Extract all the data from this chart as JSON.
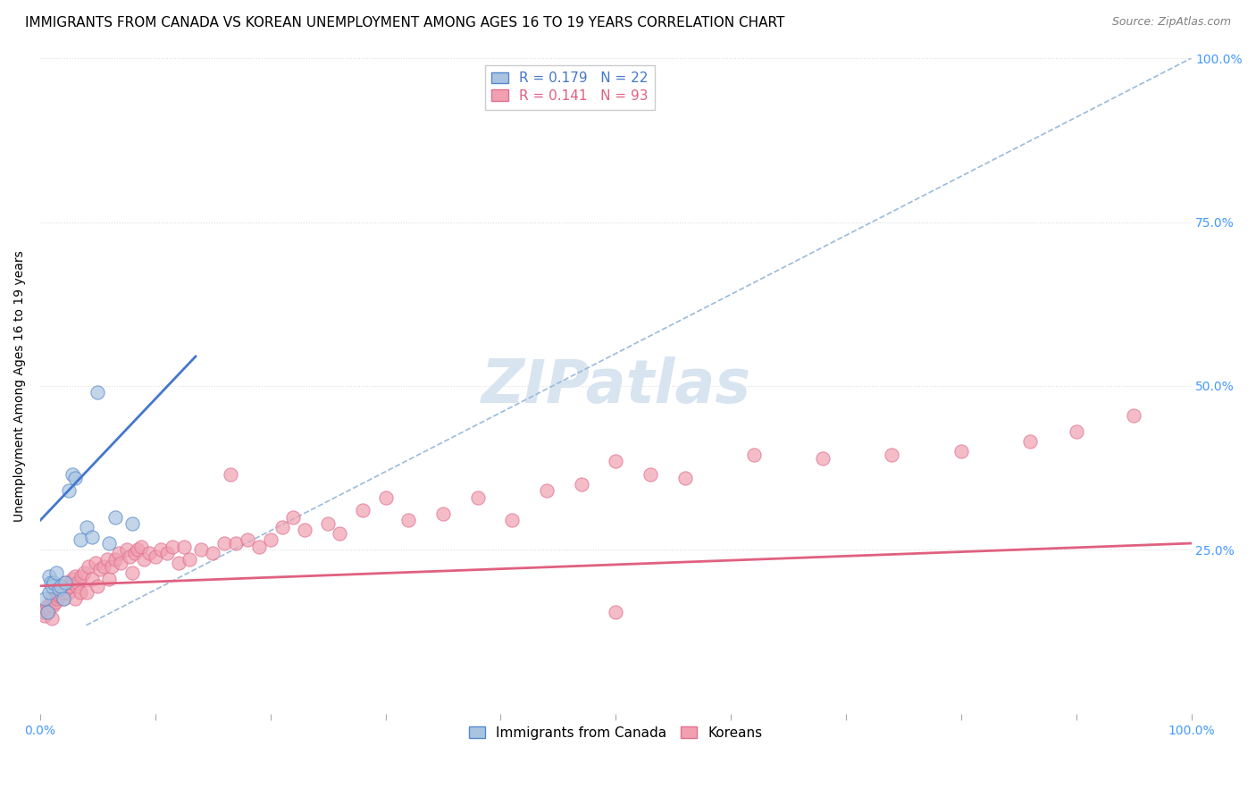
{
  "title": "IMMIGRANTS FROM CANADA VS KOREAN UNEMPLOYMENT AMONG AGES 16 TO 19 YEARS CORRELATION CHART",
  "source": "Source: ZipAtlas.com",
  "ylabel": "Unemployment Among Ages 16 to 19 years",
  "xlim": [
    0,
    1
  ],
  "ylim": [
    0,
    1
  ],
  "legend_r1": "R = 0.179",
  "legend_n1": "N = 22",
  "legend_r2": "R = 0.141",
  "legend_n2": "N = 93",
  "blue_fill": "#A8C4E0",
  "blue_edge": "#5588CC",
  "pink_fill": "#F0A0B0",
  "pink_edge": "#E07090",
  "blue_line_color": "#4477CC",
  "pink_line_color": "#E06080",
  "dashed_line_color": "#99BBDD",
  "watermark_text": "ZIPatlas",
  "watermark_color": "#D8E4F0",
  "background_color": "#FFFFFF",
  "grid_color": "#DDDDDD",
  "blue_points_x": [
    0.004,
    0.006,
    0.008,
    0.008,
    0.009,
    0.01,
    0.012,
    0.014,
    0.016,
    0.018,
    0.02,
    0.022,
    0.025,
    0.028,
    0.03,
    0.035,
    0.04,
    0.045,
    0.05,
    0.06,
    0.065,
    0.08
  ],
  "blue_points_y": [
    0.175,
    0.155,
    0.185,
    0.21,
    0.2,
    0.195,
    0.2,
    0.215,
    0.19,
    0.195,
    0.175,
    0.2,
    0.34,
    0.365,
    0.36,
    0.265,
    0.285,
    0.27,
    0.49,
    0.26,
    0.3,
    0.29
  ],
  "pink_points_x": [
    0.002,
    0.004,
    0.005,
    0.006,
    0.007,
    0.008,
    0.009,
    0.01,
    0.01,
    0.011,
    0.012,
    0.013,
    0.014,
    0.015,
    0.016,
    0.017,
    0.018,
    0.019,
    0.02,
    0.021,
    0.022,
    0.023,
    0.025,
    0.026,
    0.027,
    0.028,
    0.03,
    0.03,
    0.032,
    0.033,
    0.035,
    0.036,
    0.038,
    0.04,
    0.042,
    0.045,
    0.048,
    0.05,
    0.052,
    0.055,
    0.058,
    0.06,
    0.062,
    0.065,
    0.068,
    0.07,
    0.075,
    0.078,
    0.08,
    0.082,
    0.085,
    0.088,
    0.09,
    0.095,
    0.1,
    0.105,
    0.11,
    0.115,
    0.12,
    0.125,
    0.13,
    0.14,
    0.15,
    0.16,
    0.165,
    0.17,
    0.18,
    0.19,
    0.2,
    0.21,
    0.22,
    0.23,
    0.25,
    0.26,
    0.28,
    0.3,
    0.32,
    0.35,
    0.38,
    0.41,
    0.44,
    0.47,
    0.5,
    0.53,
    0.56,
    0.62,
    0.68,
    0.74,
    0.8,
    0.86,
    0.9,
    0.95,
    0.5
  ],
  "pink_points_y": [
    0.155,
    0.15,
    0.16,
    0.165,
    0.155,
    0.16,
    0.17,
    0.145,
    0.175,
    0.165,
    0.175,
    0.17,
    0.18,
    0.175,
    0.18,
    0.185,
    0.18,
    0.19,
    0.175,
    0.185,
    0.2,
    0.195,
    0.185,
    0.195,
    0.2,
    0.205,
    0.175,
    0.21,
    0.195,
    0.2,
    0.185,
    0.21,
    0.215,
    0.185,
    0.225,
    0.205,
    0.23,
    0.195,
    0.22,
    0.225,
    0.235,
    0.205,
    0.225,
    0.235,
    0.245,
    0.23,
    0.25,
    0.24,
    0.215,
    0.245,
    0.25,
    0.255,
    0.235,
    0.245,
    0.24,
    0.25,
    0.245,
    0.255,
    0.23,
    0.255,
    0.235,
    0.25,
    0.245,
    0.26,
    0.365,
    0.26,
    0.265,
    0.255,
    0.265,
    0.285,
    0.3,
    0.28,
    0.29,
    0.275,
    0.31,
    0.33,
    0.295,
    0.305,
    0.33,
    0.295,
    0.34,
    0.35,
    0.385,
    0.365,
    0.36,
    0.395,
    0.39,
    0.395,
    0.4,
    0.415,
    0.43,
    0.455,
    0.155
  ],
  "blue_line_x": [
    0.0,
    0.135
  ],
  "blue_line_y": [
    0.295,
    0.545
  ],
  "pink_line_x": [
    0.0,
    1.0
  ],
  "pink_line_y": [
    0.195,
    0.26
  ],
  "diag_line_x": [
    0.04,
    1.0
  ],
  "diag_line_y": [
    0.135,
    1.0
  ],
  "title_fontsize": 11,
  "source_fontsize": 9,
  "axis_label_fontsize": 10,
  "tick_fontsize": 10,
  "legend_fontsize": 11,
  "watermark_fontsize": 48,
  "point_size": 120
}
